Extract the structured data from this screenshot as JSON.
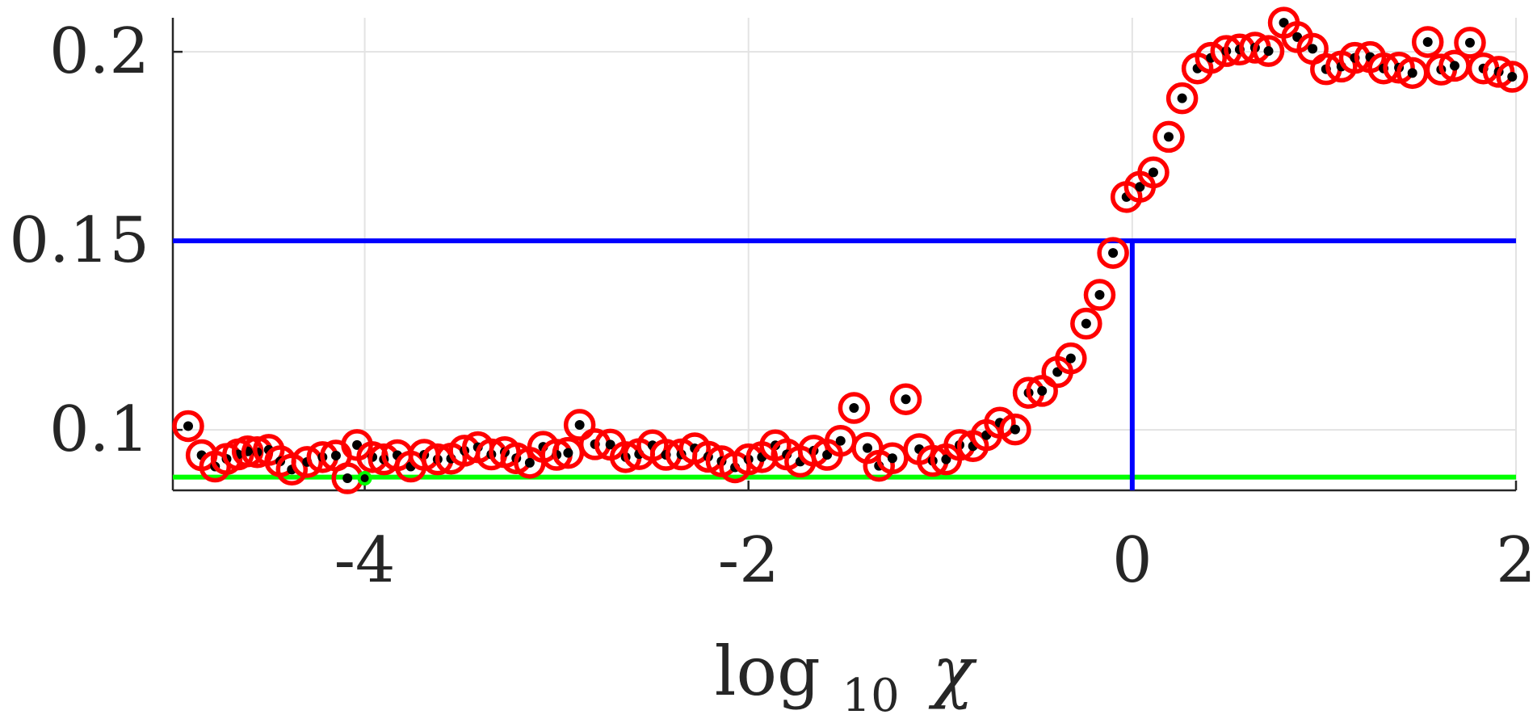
{
  "chart_data": {
    "type": "scatter",
    "xlabel": "log",
    "xlabel_subscript": "10",
    "xlabel_symbol": "χ",
    "ylabel": "",
    "xlim": [
      -5,
      2
    ],
    "ylim": [
      0.084,
      0.209
    ],
    "x_ticks": [
      -4,
      -2,
      0,
      2
    ],
    "x_tick_labels": [
      "-4",
      "-2",
      "0",
      "2"
    ],
    "y_ticks": [
      0.1,
      0.15,
      0.2
    ],
    "y_tick_labels": [
      "0.1",
      "0.15",
      "0.2"
    ],
    "grid": true,
    "legend": "none",
    "colors": {
      "marker_ring": "#ff0000",
      "marker_dot": "#000000",
      "reference_lines": "#0000ff",
      "baseline": "#00ff00",
      "highlight_point": "#00ff00",
      "grid": "#e3e3e3",
      "axis": "#262626",
      "text": "#262626"
    },
    "reference_lines": {
      "horizontal_y": 0.15,
      "vertical_x": 0,
      "baseline_y": 0.0875
    },
    "highlight_point": {
      "x": -4.0,
      "y": 0.0872
    },
    "series": [
      {
        "marker": "ring-dot",
        "x": [
          -4.92,
          -4.85,
          -4.78,
          -4.72,
          -4.66,
          -4.61,
          -4.56,
          -4.5,
          -4.44,
          -4.38,
          -4.3,
          -4.22,
          -4.15,
          -4.09,
          -4.04,
          -3.96,
          -3.9,
          -3.83,
          -3.76,
          -3.69,
          -3.62,
          -3.55,
          -3.48,
          -3.41,
          -3.34,
          -3.27,
          -3.21,
          -3.14,
          -3.07,
          -3.0,
          -2.94,
          -2.88,
          -2.8,
          -2.72,
          -2.64,
          -2.57,
          -2.5,
          -2.43,
          -2.35,
          -2.28,
          -2.21,
          -2.14,
          -2.07,
          -2.0,
          -1.93,
          -1.86,
          -1.8,
          -1.73,
          -1.66,
          -1.59,
          -1.52,
          -1.45,
          -1.38,
          -1.32,
          -1.25,
          -1.18,
          -1.11,
          -1.04,
          -0.97,
          -0.9,
          -0.83,
          -0.76,
          -0.69,
          -0.61,
          -0.54,
          -0.47,
          -0.39,
          -0.32,
          -0.24,
          -0.17,
          -0.1,
          -0.03,
          0.04,
          0.11,
          0.19,
          0.26,
          0.34,
          0.41,
          0.49,
          0.56,
          0.64,
          0.71,
          0.79,
          0.86,
          0.94,
          1.01,
          1.09,
          1.16,
          1.24,
          1.31,
          1.39,
          1.46,
          1.54,
          1.61,
          1.68,
          1.76,
          1.83,
          1.91,
          1.98
        ],
        "y": [
          0.101,
          0.0933,
          0.0903,
          0.0923,
          0.0935,
          0.0943,
          0.0941,
          0.0947,
          0.0917,
          0.0895,
          0.0915,
          0.0928,
          0.0932,
          0.0872,
          0.096,
          0.0928,
          0.0922,
          0.0933,
          0.0903,
          0.0934,
          0.0922,
          0.0924,
          0.0945,
          0.0954,
          0.0935,
          0.0941,
          0.0925,
          0.0913,
          0.0955,
          0.0934,
          0.0939,
          0.1013,
          0.0962,
          0.0961,
          0.0928,
          0.0936,
          0.0959,
          0.0934,
          0.0935,
          0.0951,
          0.0929,
          0.0917,
          0.0901,
          0.0922,
          0.0928,
          0.0959,
          0.0935,
          0.0916,
          0.0945,
          0.0934,
          0.0971,
          0.1058,
          0.0952,
          0.0905,
          0.0925,
          0.1081,
          0.0949,
          0.0918,
          0.0922,
          0.096,
          0.0957,
          0.0986,
          0.1019,
          0.1001,
          0.1098,
          0.1103,
          0.1153,
          0.1189,
          0.1281,
          0.1357,
          0.1468,
          0.1616,
          0.1643,
          0.1681,
          0.1775,
          0.1877,
          0.1956,
          0.1984,
          0.2002,
          0.2006,
          0.2011,
          0.2002,
          0.2077,
          0.2039,
          0.2008,
          0.1954,
          0.1961,
          0.1984,
          0.1986,
          0.1956,
          0.1958,
          0.1944,
          0.2026,
          0.1953,
          0.1963,
          0.2024,
          0.1956,
          0.1947,
          0.1934
        ]
      }
    ]
  }
}
